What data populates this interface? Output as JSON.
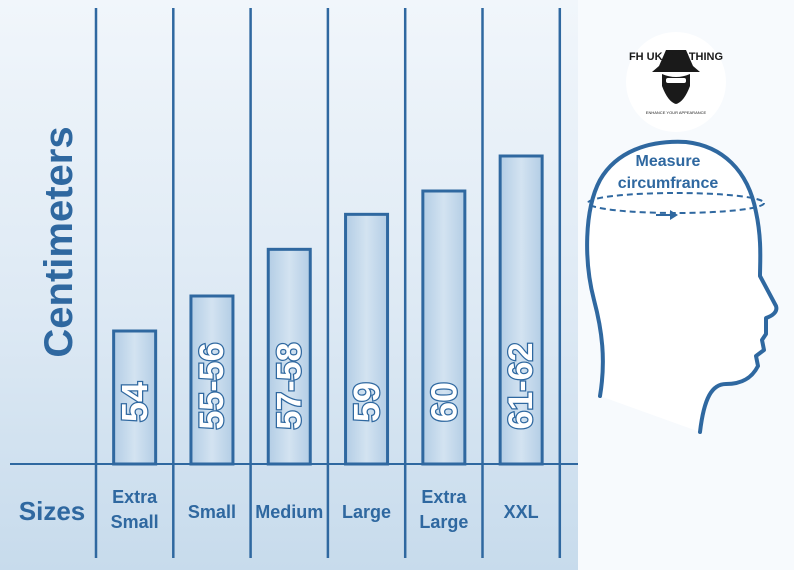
{
  "chart_data": {
    "type": "bar",
    "categories": [
      "Extra Small",
      "Small",
      "Medium",
      "Large",
      "Extra Large",
      "XXL"
    ],
    "category_lines": [
      [
        "Extra",
        "Small"
      ],
      [
        "Small"
      ],
      [
        "Medium"
      ],
      [
        "Large"
      ],
      [
        "Extra",
        "Large"
      ],
      [
        "XXL"
      ]
    ],
    "values": [
      54,
      55.5,
      57.5,
      59,
      60,
      61.5
    ],
    "value_labels": [
      "54",
      "55-56",
      "57-58",
      "59",
      "60",
      "61-62"
    ],
    "ylabel": "Centimeters",
    "xlabel": "Sizes",
    "grid": false
  },
  "illustration": {
    "measure_line1": "Measure",
    "measure_line2": "circumfrance",
    "icon": "head-profile-icon"
  },
  "logo": {
    "text": "FH UK CLOTHING",
    "tagline": "ENHANCE YOUR APPEARANCE",
    "icon": "hat-man-logo-icon"
  },
  "colors": {
    "line": "#2f68a0",
    "bar_fill": "#bfd6ea",
    "bar_stroke": "#2f68a0",
    "panel_top": "#eef4fa",
    "panel_bottom": "#c9dced",
    "label_text": "#2f68a0"
  }
}
